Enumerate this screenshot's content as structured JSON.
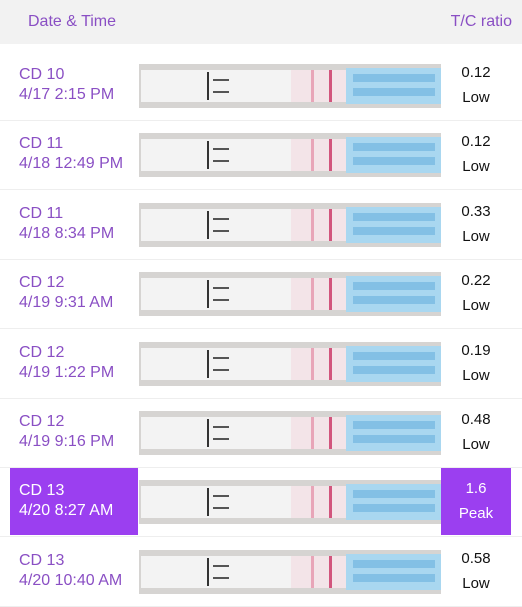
{
  "header": {
    "date_label": "Date & Time",
    "ratio_label": "T/C ratio"
  },
  "selected_row": 6,
  "rows": [
    {
      "cycle_day": "CD 10",
      "datetime": "4/17 2:15 PM",
      "ratio": "0.12",
      "result": "Low"
    },
    {
      "cycle_day": "CD 11",
      "datetime": "4/18 12:49 PM",
      "ratio": "0.12",
      "result": "Low"
    },
    {
      "cycle_day": "CD 11",
      "datetime": "4/18 8:34 PM",
      "ratio": "0.33",
      "result": "Low"
    },
    {
      "cycle_day": "CD 12",
      "datetime": "4/19 9:31 AM",
      "ratio": "0.22",
      "result": "Low"
    },
    {
      "cycle_day": "CD 12",
      "datetime": "4/19 1:22 PM",
      "ratio": "0.19",
      "result": "Low"
    },
    {
      "cycle_day": "CD 12",
      "datetime": "4/19 9:16 PM",
      "ratio": "0.48",
      "result": "Low"
    },
    {
      "cycle_day": "CD 13",
      "datetime": "4/20 8:27 AM",
      "ratio": "1.6",
      "result": "Peak"
    },
    {
      "cycle_day": "CD 13",
      "datetime": "4/20 10:40 AM",
      "ratio": "0.58",
      "result": "Low"
    }
  ]
}
